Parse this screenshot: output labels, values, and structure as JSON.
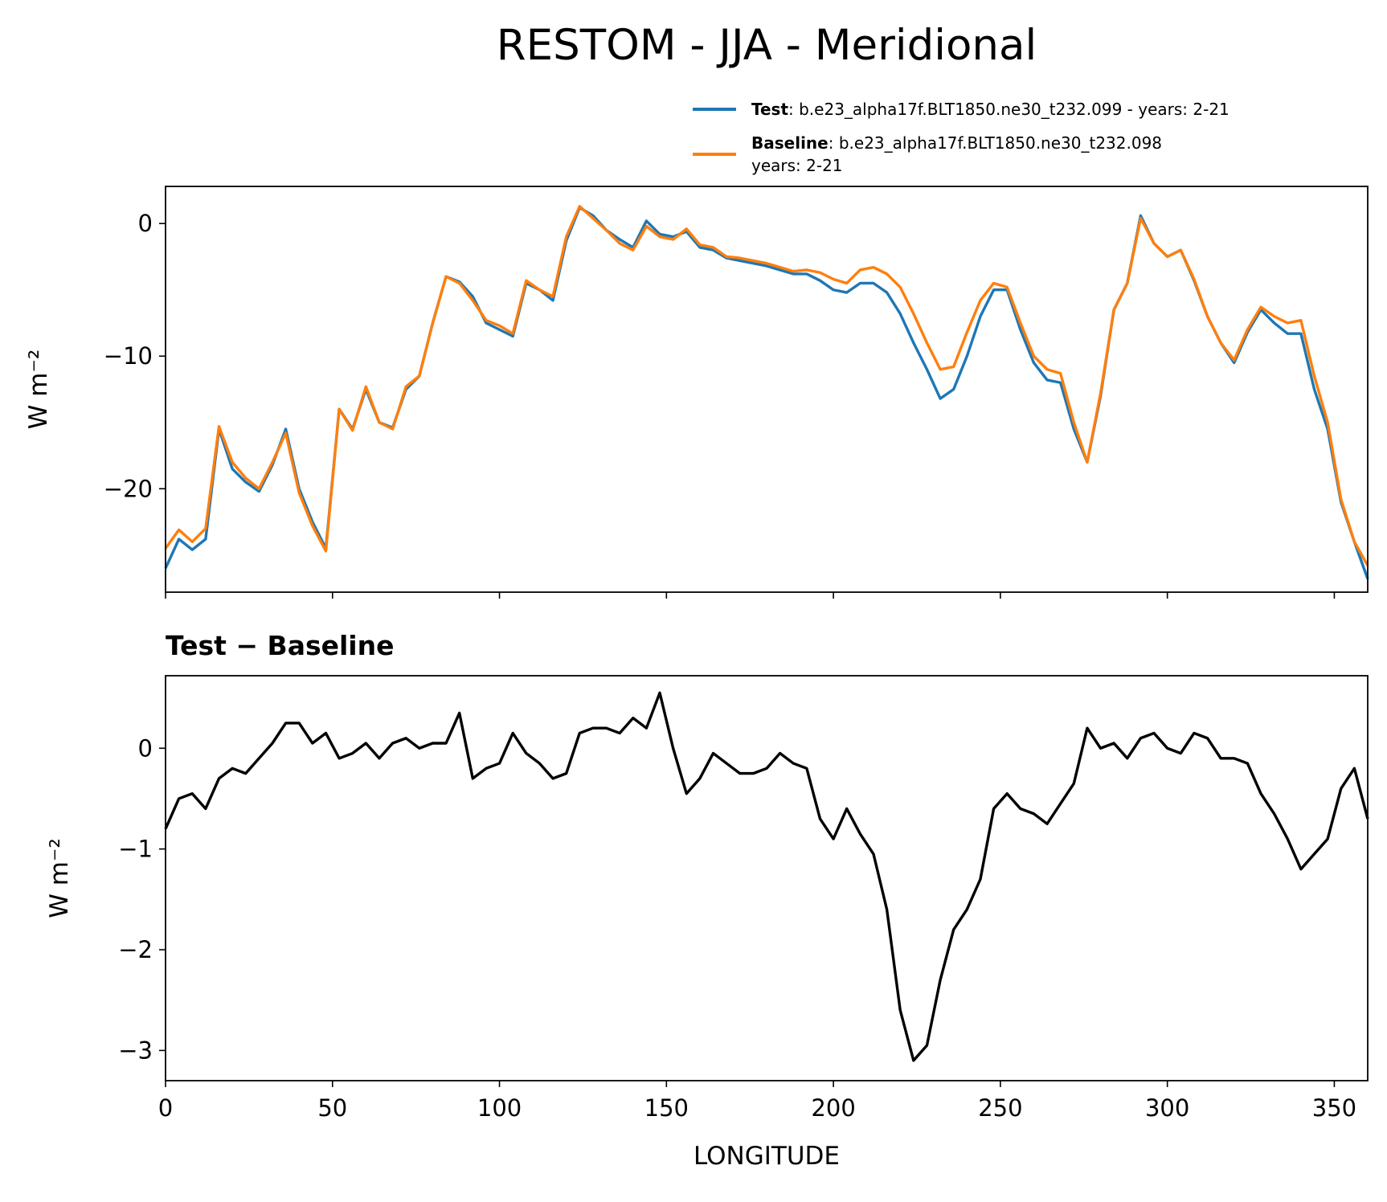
{
  "chart_data": [
    {
      "type": "line",
      "title": "RESTOM - JJA - Meridional",
      "ylabel": "W m⁻²",
      "x": [
        0,
        4,
        8,
        12,
        16,
        20,
        24,
        28,
        32,
        36,
        40,
        44,
        48,
        52,
        56,
        60,
        64,
        68,
        72,
        76,
        80,
        84,
        88,
        92,
        96,
        100,
        104,
        108,
        112,
        116,
        120,
        124,
        128,
        132,
        136,
        140,
        144,
        148,
        152,
        156,
        160,
        164,
        168,
        172,
        176,
        180,
        184,
        188,
        192,
        196,
        200,
        204,
        208,
        212,
        216,
        220,
        224,
        228,
        232,
        236,
        240,
        244,
        248,
        252,
        256,
        260,
        264,
        268,
        272,
        276,
        280,
        284,
        288,
        292,
        296,
        300,
        304,
        308,
        312,
        316,
        320,
        324,
        328,
        332,
        336,
        340,
        344,
        348,
        352,
        356,
        360
      ],
      "series": [
        {
          "name": "Test",
          "label": ": b.e23_alpha17f.BLT1850.ne30_t232.099 - years: 2-21",
          "color": "#1f77b4",
          "values": [
            -26,
            -23.8,
            -24.6,
            -23.8,
            -15.5,
            -18.5,
            -19.5,
            -20.2,
            -18.2,
            -15.5,
            -20,
            -22.5,
            -24.5,
            -14,
            -15.5,
            -12.5,
            -15,
            -15.4,
            -12.5,
            -11.5,
            -7.5,
            -4,
            -4.4,
            -5.5,
            -7.5,
            -8,
            -8.5,
            -4.5,
            -5,
            -5.8,
            -1.3,
            1.2,
            0.6,
            -0.5,
            -1.2,
            -1.8,
            0.2,
            -0.8,
            -1,
            -0.6,
            -1.8,
            -2,
            -2.6,
            -2.8,
            -3,
            -3.2,
            -3.5,
            -3.8,
            -3.8,
            -4.3,
            -5,
            -5.2,
            -4.5,
            -4.5,
            -5.2,
            -6.8,
            -9,
            -11,
            -13.2,
            -12.5,
            -10,
            -7,
            -5,
            -5,
            -8,
            -10.5,
            -11.8,
            -12,
            -15.5,
            -18,
            -13,
            -6.5,
            -4.5,
            0.6,
            -1.5,
            -2.5,
            -2,
            -4.3,
            -7,
            -9,
            -10.5,
            -8.2,
            -6.5,
            -7.5,
            -8.3,
            -8.3,
            -12.5,
            -15.5,
            -21,
            -24,
            -26.8
          ]
        },
        {
          "name": "Baseline",
          "label_lines": [
            ": b.e23_alpha17f.BLT1850.ne30_t232.098",
            "years: 2-21"
          ],
          "color": "#ff7f0e",
          "values": [
            -24.5,
            -23.1,
            -24,
            -23,
            -15.3,
            -18,
            -19.2,
            -20,
            -18,
            -15.8,
            -20.3,
            -22.8,
            -24.7,
            -14,
            -15.6,
            -12.3,
            -15,
            -15.5,
            -12.3,
            -11.5,
            -7.5,
            -4,
            -4.5,
            -5.8,
            -7.3,
            -7.7,
            -8.3,
            -4.3,
            -5,
            -5.5,
            -1,
            1.3,
            0.4,
            -0.5,
            -1.5,
            -2,
            -0.2,
            -1,
            -1.2,
            -0.4,
            -1.6,
            -1.8,
            -2.5,
            -2.6,
            -2.8,
            -3,
            -3.3,
            -3.6,
            -3.5,
            -3.7,
            -4.2,
            -4.5,
            -3.5,
            -3.3,
            -3.8,
            -4.8,
            -6.8,
            -9,
            -11,
            -10.8,
            -8.2,
            -5.8,
            -4.5,
            -4.8,
            -7.5,
            -10,
            -11,
            -11.3,
            -15,
            -18,
            -12.8,
            -6.5,
            -4.5,
            0.4,
            -1.5,
            -2.5,
            -2,
            -4.2,
            -7,
            -9,
            -10.3,
            -8,
            -6.3,
            -7,
            -7.5,
            -7.3,
            -11.5,
            -15,
            -20.8,
            -24,
            -25.8
          ]
        }
      ],
      "xlim": [
        0,
        360
      ],
      "xticks": [
        0,
        50,
        100,
        150,
        200,
        250,
        300,
        350
      ],
      "xtick_labels": false,
      "ylim": [
        -27.8,
        2.8
      ],
      "yticks": [
        {
          "value": -20,
          "label": "−20"
        },
        {
          "value": -10,
          "label": "−10"
        },
        0
      ]
    },
    {
      "type": "line",
      "title": "Test − Baseline",
      "ylabel": "W m⁻²",
      "xlabel": "LONGITUDE",
      "x": [
        0,
        4,
        8,
        12,
        16,
        20,
        24,
        28,
        32,
        36,
        40,
        44,
        48,
        52,
        56,
        60,
        64,
        68,
        72,
        76,
        80,
        84,
        88,
        92,
        96,
        100,
        104,
        108,
        112,
        116,
        120,
        124,
        128,
        132,
        136,
        140,
        144,
        148,
        152,
        156,
        160,
        164,
        168,
        172,
        176,
        180,
        184,
        188,
        192,
        196,
        200,
        204,
        208,
        212,
        216,
        220,
        224,
        228,
        232,
        236,
        240,
        244,
        248,
        252,
        256,
        260,
        264,
        268,
        272,
        276,
        280,
        284,
        288,
        292,
        296,
        300,
        304,
        308,
        312,
        316,
        320,
        324,
        328,
        332,
        336,
        340,
        344,
        348,
        352,
        356,
        360
      ],
      "series": [
        {
          "color": "#000000",
          "values": [
            -0.8,
            -0.5,
            -0.45,
            -0.6,
            -0.3,
            -0.2,
            -0.25,
            -0.1,
            0.05,
            0.25,
            0.25,
            0.05,
            0.15,
            -0.1,
            -0.05,
            0.05,
            -0.1,
            0.05,
            0.1,
            0,
            0.05,
            0.05,
            0.35,
            -0.3,
            -0.2,
            -0.15,
            0.15,
            -0.05,
            -0.15,
            -0.3,
            -0.25,
            0.15,
            0.2,
            0.2,
            0.15,
            0.3,
            0.2,
            0.55,
            0,
            -0.45,
            -0.3,
            -0.05,
            -0.15,
            -0.25,
            -0.25,
            -0.2,
            -0.05,
            -0.15,
            -0.2,
            -0.7,
            -0.9,
            -0.6,
            -0.85,
            -1.05,
            -1.6,
            -2.6,
            -3.1,
            -2.95,
            -2.3,
            -1.8,
            -1.6,
            -1.3,
            -0.6,
            -0.45,
            -0.6,
            -0.65,
            -0.75,
            -0.55,
            -0.35,
            0.2,
            0,
            0.05,
            -0.1,
            0.1,
            0.15,
            0,
            -0.05,
            0.15,
            0.1,
            -0.1,
            -0.1,
            -0.15,
            -0.45,
            -0.65,
            -0.9,
            -1.2,
            -1.05,
            -0.9,
            -0.4,
            -0.2,
            -0.7
          ]
        }
      ],
      "xlim": [
        0,
        360
      ],
      "xticks": [
        0,
        50,
        100,
        150,
        200,
        250,
        300,
        350
      ],
      "ylim": [
        -3.3,
        0.72
      ],
      "yticks": [
        {
          "value": -3,
          "label": "−3"
        },
        {
          "value": -2,
          "label": "−2"
        },
        {
          "value": -1,
          "label": "−1"
        },
        0
      ]
    }
  ]
}
